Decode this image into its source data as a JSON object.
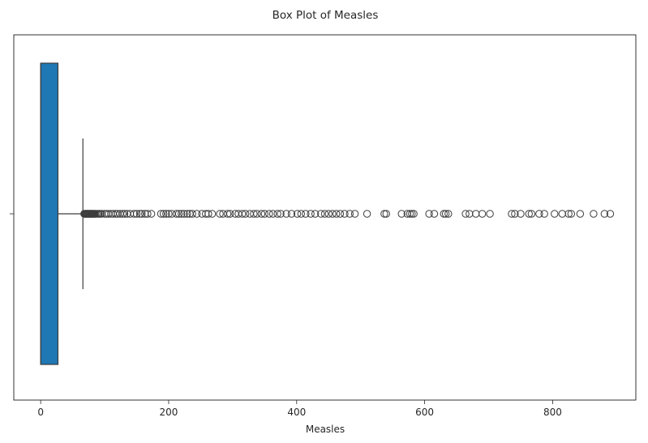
{
  "chart_data": {
    "type": "box",
    "title": "Box Plot of Measles",
    "xlabel": "Measles",
    "ylabel": "",
    "orientation": "horizontal",
    "xlim": [
      -42,
      930
    ],
    "xticks": [
      0,
      200,
      400,
      600,
      800
    ],
    "grid": false,
    "legend": "none",
    "box": {
      "color": "#1f77b4",
      "whisker_low": 0,
      "q1": 0,
      "median": 0,
      "q3": 27,
      "whisker_high": 66
    },
    "outliers": [
      68,
      69,
      70,
      71,
      72,
      73,
      74,
      75,
      76,
      77,
      78,
      79,
      80,
      81,
      82,
      83,
      84,
      85,
      87,
      89,
      91,
      93,
      95,
      100,
      103,
      106,
      110,
      113,
      117,
      120,
      124,
      128,
      131,
      135,
      140,
      146,
      150,
      155,
      158,
      163,
      167,
      173,
      188,
      192,
      196,
      200,
      205,
      212,
      216,
      220,
      224,
      229,
      233,
      237,
      244,
      252,
      258,
      262,
      268,
      280,
      285,
      292,
      296,
      304,
      309,
      315,
      320,
      327,
      333,
      338,
      345,
      350,
      357,
      363,
      370,
      375,
      384,
      392,
      401,
      407,
      414,
      422,
      429,
      438,
      444,
      450,
      456,
      462,
      468,
      475,
      483,
      491,
      510,
      537,
      540,
      564,
      573,
      577,
      580,
      583,
      607,
      615,
      630,
      633,
      637,
      664,
      670,
      680,
      690,
      702,
      736,
      741,
      750,
      763,
      767,
      779,
      787,
      803,
      815,
      825,
      829,
      843,
      864,
      881,
      890
    ]
  }
}
